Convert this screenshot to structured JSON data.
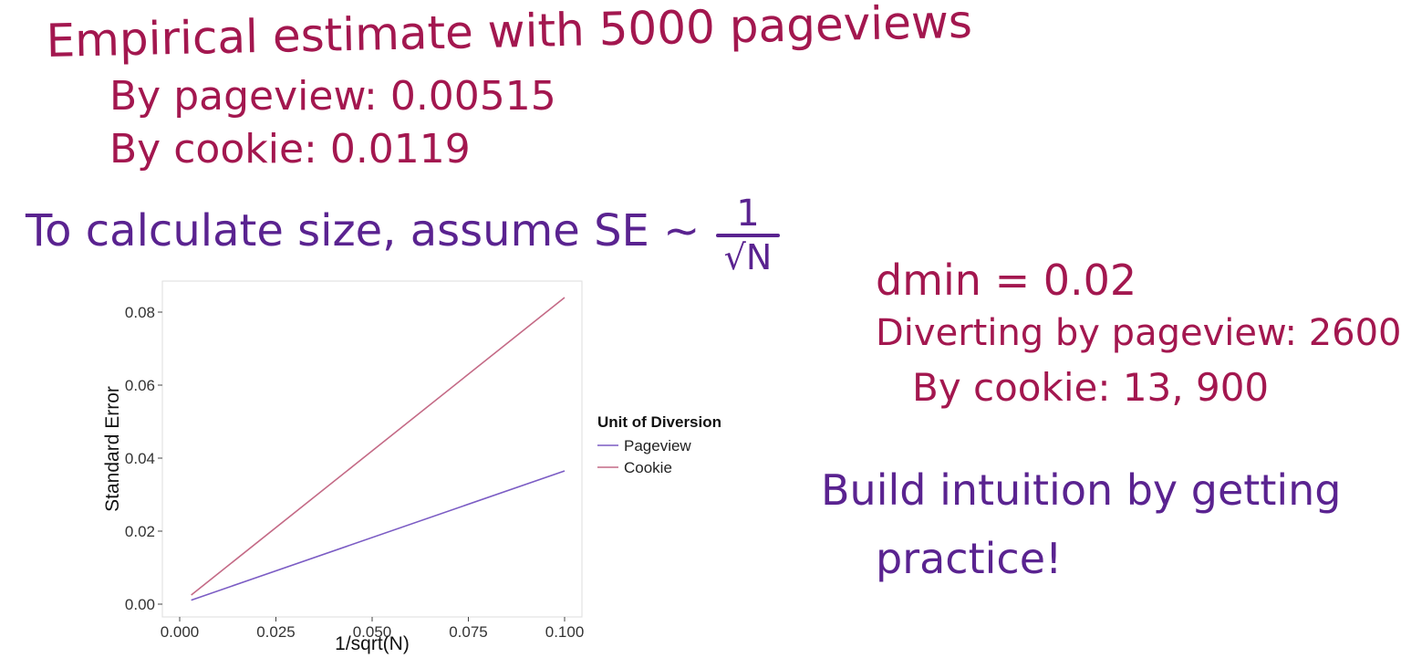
{
  "notes": {
    "line1": "Empirical estimate with 5000 pageviews",
    "line2": "By pageview: 0.00515",
    "line3": "By cookie: 0.0119",
    "line4": "To calculate size, assume SE ~",
    "frac_num": "1",
    "frac_den": "√N",
    "right1": "dmin = 0.02",
    "right2": "Diverting by pageview: 2600",
    "right3": "By cookie: 13, 900",
    "right4": "Build intuition by getting",
    "right5": "practice!"
  },
  "colors": {
    "maroon": "#a3174f",
    "purple": "#5a2390",
    "pageview_line": "#7b5cc4",
    "cookie_line": "#c46a86"
  },
  "chart_data": {
    "type": "line",
    "xlabel": "1/sqrt(N)",
    "ylabel": "Standard Error",
    "xlim": [
      0.0,
      0.1
    ],
    "ylim": [
      0.0,
      0.085
    ],
    "x_ticks": [
      "0.000",
      "0.025",
      "0.050",
      "0.075",
      "0.100"
    ],
    "y_ticks": [
      "0.00",
      "0.02",
      "0.04",
      "0.06",
      "0.08"
    ],
    "grid": false,
    "legend": {
      "title": "Unit of Diversion",
      "placement": "right"
    },
    "series": [
      {
        "name": "Pageview",
        "x": [
          0.003,
          0.1
        ],
        "y": [
          0.0011,
          0.0365
        ]
      },
      {
        "name": "Cookie",
        "x": [
          0.003,
          0.1
        ],
        "y": [
          0.0025,
          0.084
        ]
      }
    ]
  }
}
